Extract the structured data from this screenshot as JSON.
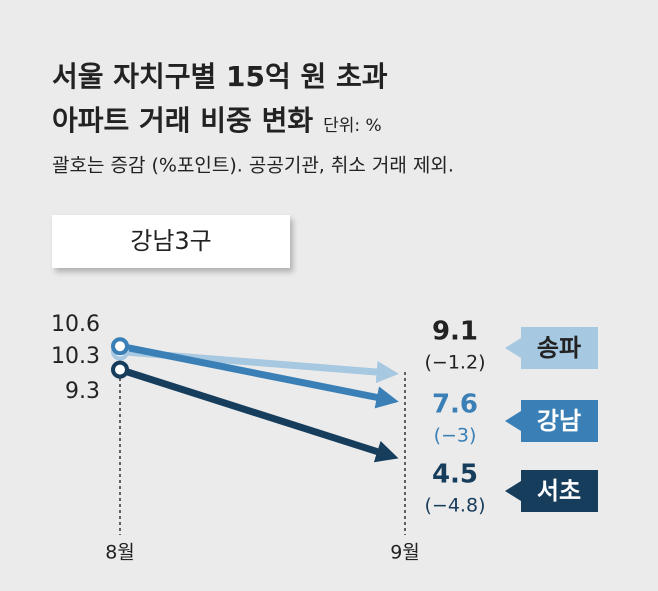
{
  "chart_data": {
    "type": "slope",
    "title_line1": "서울 자치구별 15억 원 초과",
    "title_line2": "아파트 거래 비중 변화",
    "unit": "단위: %",
    "subtitle": "괄호는 증감 (%포인트). 공공기관, 취소 거래 제외.",
    "group": "강남3구",
    "categories": [
      "8월",
      "9월"
    ],
    "ylim": [
      3,
      11.5
    ],
    "series": [
      {
        "name": "송파",
        "color": "#a6c8e0",
        "values": [
          10.3,
          9.1
        ],
        "change": -1.2,
        "change_label": "(−1.2)"
      },
      {
        "name": "강남",
        "color": "#3a7fb5",
        "values": [
          10.6,
          7.6
        ],
        "change": -3,
        "change_label": "(−3)"
      },
      {
        "name": "서초",
        "color": "#173d5c",
        "values": [
          9.3,
          4.5
        ],
        "change": -4.8,
        "change_label": "(−4.8)"
      }
    ]
  }
}
